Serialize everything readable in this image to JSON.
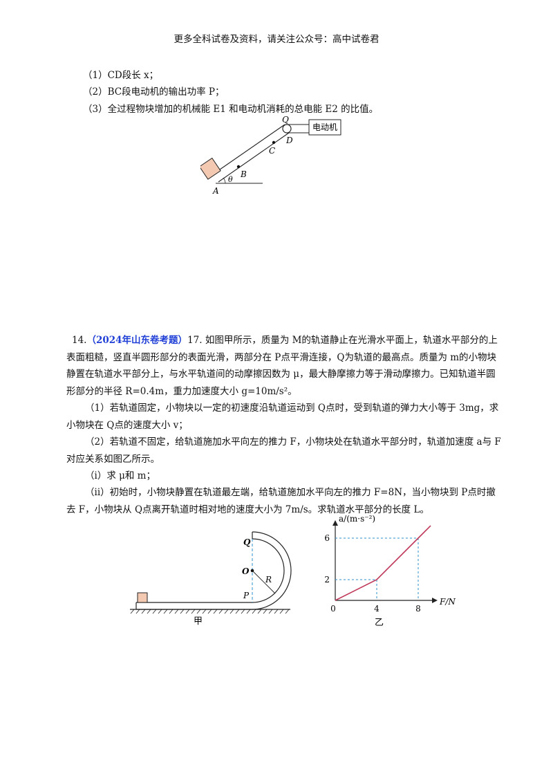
{
  "header": "更多全科试卷及资料，请关注公众号：高中试卷君",
  "q13": {
    "items": [
      "（1）CD段长 x；",
      "（2）BC段电动机的输出功率 P；",
      "（3）全过程物块增加的机械能 E1 和电动机消耗的总电能 E2 的比值。"
    ],
    "figure": {
      "motor_label": "电动机",
      "labels": [
        "Q",
        "D",
        "C",
        "B",
        "θ",
        "A"
      ]
    }
  },
  "q14": {
    "number": "14.",
    "source": "（2024年山东卷考题）",
    "para1": "17. 如图甲所示，质量为 M的轨道静止在光滑水平面上，轨道水平部分的上表面粗糙，竖直半圆形部分的表面光滑，两部分在 P点平滑连接，Q为轨道的最高点。质量为 m的小物块静置在轨道水平部分上，与水平轨道间的动摩擦因数为 μ，最大静摩擦力等于滑动摩擦力。已知轨道半圆形部分的半径 R=0.4m，重力加速度大小 g=10m/s²。",
    "para2": "（1）若轨道固定，小物块以一定的初速度沿轨道运动到 Q点时，受到轨道的弹力大小等于 3mg，求小物块在 Q点的速度大小 v；",
    "para3": "（2）若轨道不固定，给轨道施加水平向左的推力 F，小物块处在轨道水平部分时，轨道加速度 a与 F对应关系如图乙所示。",
    "para4": "（i）求 μ和 m；",
    "para5": "（ii）初始时，小物块静置在轨道最左端，给轨道施加水平向左的推力 F=8N，当小物块到 P点时撤去 F，小物块从 Q点离开轨道时相对地的速度大小为 7m/s。求轨道水平部分的长度 L。",
    "fig_jia": {
      "caption": "甲",
      "labels": [
        "Q",
        "O",
        "R",
        "P"
      ]
    },
    "fig_yi": {
      "caption": "乙",
      "ylabel": "a/(m·s⁻²)",
      "xlabel": "F/N",
      "origin": "0"
    }
  },
  "chart_data": {
    "type": "line",
    "x": [
      0,
      4,
      8,
      9.2
    ],
    "y": [
      0,
      2,
      6,
      7.2
    ],
    "xticks": [
      "4",
      "8"
    ],
    "yticks": [
      "2",
      "6"
    ],
    "xlabel": "F/N",
    "ylabel": "a/(m·s⁻²)",
    "line_color": "#c0395a",
    "guide_color": "#2b8fd1"
  }
}
